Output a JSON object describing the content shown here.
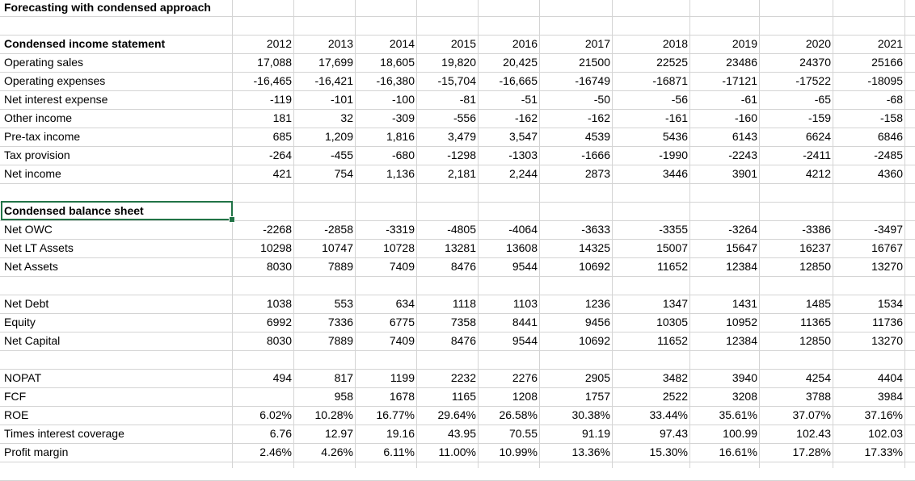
{
  "title": "Forecasting with condensed approach",
  "rows": [
    {
      "label": "Condensed income statement",
      "bold": true,
      "values": [
        "2012",
        "2013",
        "2014",
        "2015",
        "2016",
        "2017",
        "2018",
        "2019",
        "2020",
        "2021"
      ]
    },
    {
      "label": "Operating sales",
      "values": [
        "17,088",
        "17,699",
        "18,605",
        "19,820",
        "20,425",
        "21500",
        "22525",
        "23486",
        "24370",
        "25166"
      ]
    },
    {
      "label": "Operating expenses",
      "values": [
        "-16,465",
        "-16,421",
        "-16,380",
        "-15,704",
        "-16,665",
        "-16749",
        "-16871",
        "-17121",
        "-17522",
        "-18095"
      ]
    },
    {
      "label": "Net interest expense",
      "values": [
        "-119",
        "-101",
        "-100",
        "-81",
        "-51",
        "-50",
        "-56",
        "-61",
        "-65",
        "-68"
      ]
    },
    {
      "label": "Other income",
      "values": [
        "181",
        "32",
        "-309",
        "-556",
        "-162",
        "-162",
        "-161",
        "-160",
        "-159",
        "-158"
      ]
    },
    {
      "label": "Pre-tax income",
      "values": [
        "685",
        "1,209",
        "1,816",
        "3,479",
        "3,547",
        "4539",
        "5436",
        "6143",
        "6624",
        "6846"
      ]
    },
    {
      "label": "Tax provision",
      "values": [
        "-264",
        "-455",
        "-680",
        "-1298",
        "-1303",
        "-1666",
        "-1990",
        "-2243",
        "-2411",
        "-2485"
      ]
    },
    {
      "label": "Net income",
      "values": [
        "421",
        "754",
        "1,136",
        "2,181",
        "2,244",
        "2873",
        "3446",
        "3901",
        "4212",
        "4360"
      ]
    },
    {
      "label": "",
      "values": []
    },
    {
      "label": "Condensed balance sheet",
      "bold": true,
      "selected": true,
      "values": []
    },
    {
      "label": "Net OWC",
      "values": [
        "-2268",
        "-2858",
        "-3319",
        "-4805",
        "-4064",
        "-3633",
        "-3355",
        "-3264",
        "-3386",
        "-3497"
      ]
    },
    {
      "label": "Net LT Assets",
      "values": [
        "10298",
        "10747",
        "10728",
        "13281",
        "13608",
        "14325",
        "15007",
        "15647",
        "16237",
        "16767"
      ]
    },
    {
      "label": "Net Assets",
      "values": [
        "8030",
        "7889",
        "7409",
        "8476",
        "9544",
        "10692",
        "11652",
        "12384",
        "12850",
        "13270"
      ]
    },
    {
      "label": "",
      "values": []
    },
    {
      "label": "Net Debt",
      "values": [
        "1038",
        "553",
        "634",
        "1118",
        "1103",
        "1236",
        "1347",
        "1431",
        "1485",
        "1534"
      ]
    },
    {
      "label": "Equity",
      "values": [
        "6992",
        "7336",
        "6775",
        "7358",
        "8441",
        "9456",
        "10305",
        "10952",
        "11365",
        "11736"
      ]
    },
    {
      "label": "Net Capital",
      "values": [
        "8030",
        "7889",
        "7409",
        "8476",
        "9544",
        "10692",
        "11652",
        "12384",
        "12850",
        "13270"
      ]
    },
    {
      "label": "",
      "values": []
    },
    {
      "label": "NOPAT",
      "values": [
        "494",
        "817",
        "1199",
        "2232",
        "2276",
        "2905",
        "3482",
        "3940",
        "4254",
        "4404"
      ]
    },
    {
      "label": "FCF",
      "values": [
        "",
        "958",
        "1678",
        "1165",
        "1208",
        "1757",
        "2522",
        "3208",
        "3788",
        "3984"
      ]
    },
    {
      "label": "ROE",
      "values": [
        "6.02%",
        "10.28%",
        "16.77%",
        "29.64%",
        "26.58%",
        "30.38%",
        "33.44%",
        "35.61%",
        "37.07%",
        "37.16%"
      ]
    },
    {
      "label": "Times interest coverage",
      "values": [
        "6.76",
        "12.97",
        "19.16",
        "43.95",
        "70.55",
        "91.19",
        "97.43",
        "100.99",
        "102.43",
        "102.03"
      ]
    },
    {
      "label": "Profit margin",
      "values": [
        "2.46%",
        "4.26%",
        "6.11%",
        "11.00%",
        "10.99%",
        "13.36%",
        "15.30%",
        "16.61%",
        "17.28%",
        "17.33%"
      ]
    }
  ]
}
